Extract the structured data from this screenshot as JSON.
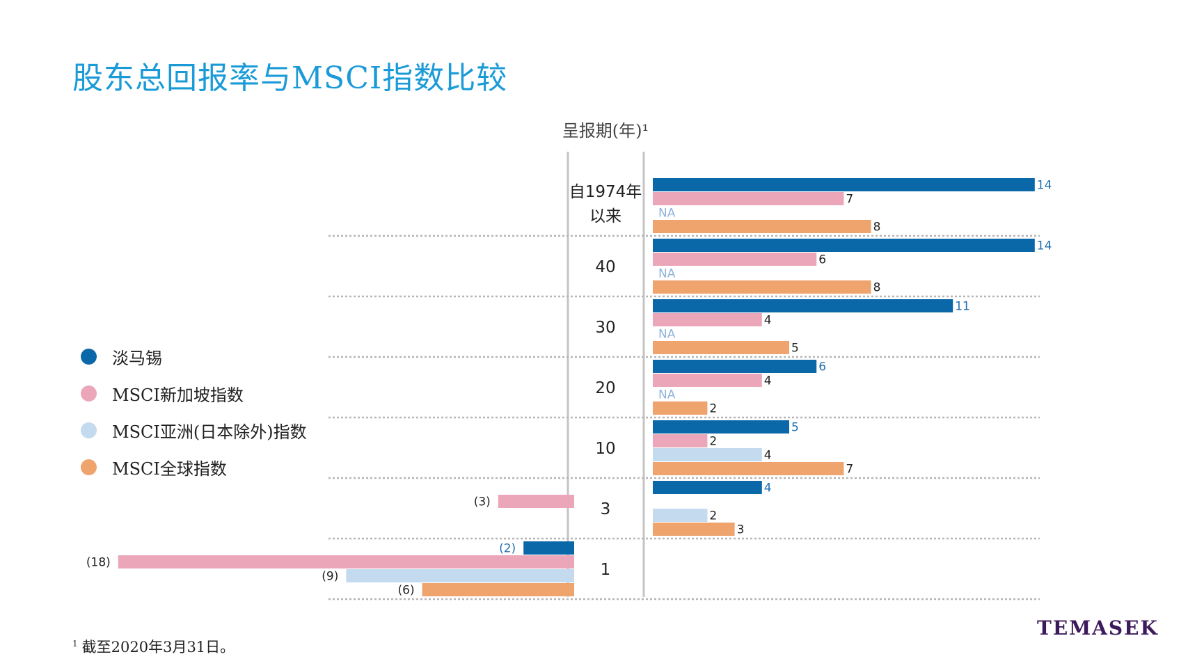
{
  "title": "股东总回报率与MSCI指数比较",
  "footnote": {
    "mark": "1",
    "text": "截至2020年3月31日。"
  },
  "logo": "TEMASEK",
  "legend": [
    {
      "label": "淡马锡",
      "color": "#0a67a8"
    },
    {
      "label": "MSCI新加坡指数",
      "color": "#eba7b9"
    },
    {
      "label": "MSCI亚洲(日本除外)指数",
      "color": "#c3daef"
    },
    {
      "label": "MSCI全球指数",
      "color": "#efa46e"
    }
  ],
  "chart_data": {
    "type": "bar",
    "orientation": "horizontal",
    "category_axis_title": "呈报期(年)¹",
    "categories": [
      {
        "label_lines": [
          "自1974年",
          "以来"
        ]
      },
      {
        "label_lines": [
          "40"
        ]
      },
      {
        "label_lines": [
          "30"
        ]
      },
      {
        "label_lines": [
          "20"
        ]
      },
      {
        "label_lines": [
          "10"
        ]
      },
      {
        "label_lines": [
          "3"
        ]
      },
      {
        "label_lines": [
          "1"
        ]
      }
    ],
    "series": [
      {
        "name": "淡马锡",
        "color": "#0a67a8",
        "label_color": "#1f6fb2",
        "values": [
          14,
          14,
          11,
          6,
          5,
          4,
          -2
        ]
      },
      {
        "name": "MSCI新加坡指数",
        "color": "#eba7b9",
        "label_color": "#222222",
        "values": [
          7,
          6,
          4,
          4,
          2,
          -3,
          -18
        ]
      },
      {
        "name": "MSCI亚洲(日本除外)指数",
        "color": "#c3daef",
        "label_color": "#222222",
        "values": [
          null,
          null,
          null,
          null,
          4,
          2,
          -9
        ]
      },
      {
        "name": "MSCI全球指数",
        "color": "#efa46e",
        "label_color": "#222222",
        "values": [
          8,
          8,
          5,
          2,
          7,
          3,
          -6
        ]
      }
    ],
    "na_label": "NA",
    "na_color": "#8fb3d9",
    "negative_format": "parentheses"
  }
}
